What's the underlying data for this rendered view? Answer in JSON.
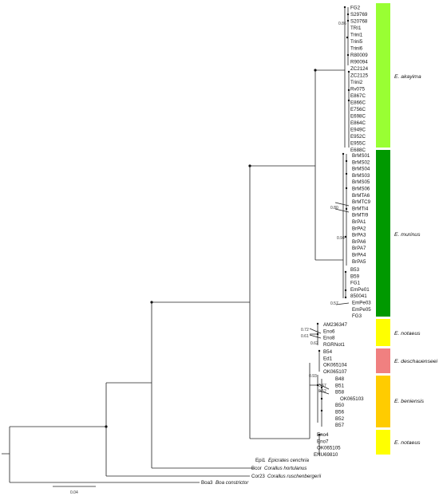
{
  "clades": [
    {
      "name": "E. akayima",
      "color": "#99FF33"
    },
    {
      "name": "E. murinus",
      "color": "#009900"
    },
    {
      "name": "E. notaeus",
      "color": "#FFFF00"
    },
    {
      "name": "E. deschauenseei",
      "color": "#F08080"
    },
    {
      "name": "E. beniensis",
      "color": "#FFCC00"
    },
    {
      "name": "E. notaeus",
      "color": "#FFFF00"
    }
  ],
  "tips": {
    "akayima": [
      "FG2",
      "S29769",
      "S20768",
      "TRI1",
      "Trini1",
      "Trini5",
      "Trini6",
      "R80009",
      "R90094",
      "ZC2124",
      "ZC2125",
      "Trini2",
      "Rv075",
      "E867C",
      "E866C",
      "E756C",
      "E698C",
      "E864C",
      "E949C",
      "E952C",
      "E955C",
      "E688C"
    ],
    "murinus": [
      "BrMS01",
      "BrMS02",
      "BrMS04",
      "BrMS03",
      "BrMS05",
      "BrMS06",
      "BrMTA6",
      "BrMTC9",
      "BrMTI4",
      "BrMTI9",
      "BrPA1",
      "BrPA2",
      "BrPA3",
      "BrPA6",
      "BrPA7",
      "BrPA4",
      "BrPA5",
      "B53",
      "B59",
      "FG1",
      "EmPe01",
      "850041",
      "EmPe03",
      "EmPe05",
      "FG3"
    ],
    "notaeus_top": [
      "AM236347",
      "Eno6",
      "Eno8",
      "RGRNot1"
    ],
    "deschauenseei": [
      "B54",
      "Ed1",
      "OK065104",
      "OK065107"
    ],
    "beniensis": [
      "B48",
      "B51",
      "B58",
      "OK065103",
      "B50",
      "B56",
      "B52",
      "B57"
    ],
    "notaeus_bottom": [
      "Eno4",
      "Eno7",
      "OK065105",
      "ENU69810"
    ]
  },
  "outgroups": [
    {
      "code": "Epi1",
      "species": "Epicrates cenchria"
    },
    {
      "code": "Bcor",
      "species": "Corallus hortulanus"
    },
    {
      "code": "Cor23",
      "species": "Corallus ruschenbergerii"
    },
    {
      "code": "Boa3",
      "species": "Boa constrictor"
    }
  ],
  "support_values": [
    "0.86",
    "0.80",
    "0.94",
    "0.57",
    "0.72",
    "0.61",
    "0.62",
    "0.93",
    "0.67",
    "0.52"
  ],
  "scale_bar": "0.04"
}
